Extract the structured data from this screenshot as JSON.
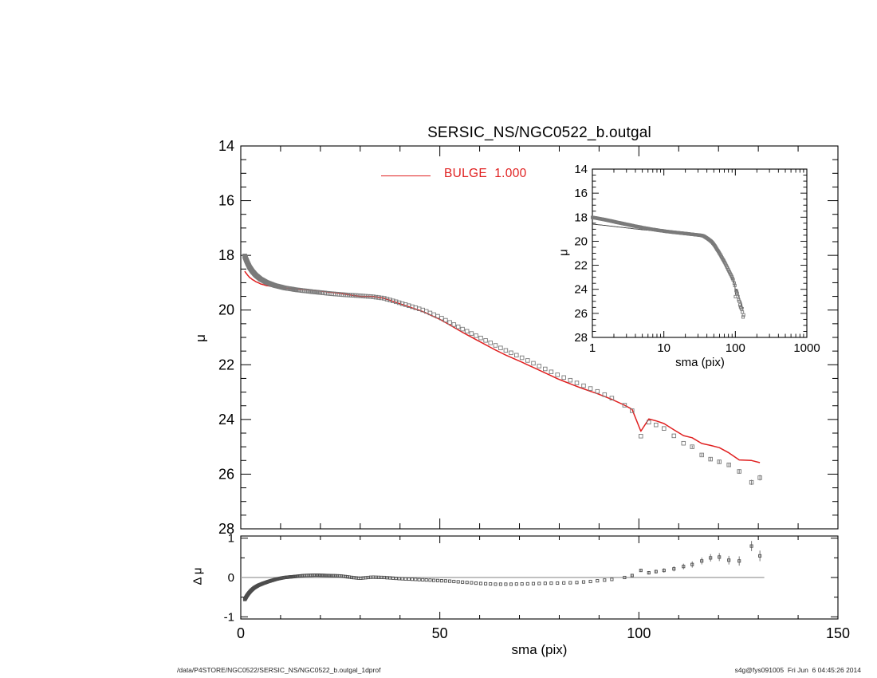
{
  "title": "SERSIC_NS/NGC0522_b.outgal",
  "legend": {
    "label": "BULGE  1.000",
    "color": "#e01f1f",
    "sample": "red-line"
  },
  "axis_labels": {
    "main_y": "μ",
    "residual_y": "Δ μ",
    "x": "sma (pix)",
    "inset_x": "sma (pix)",
    "inset_y": "μ"
  },
  "footer": {
    "left": "/data/P4STORE/NGC0522/SERSIC_NS/NGC0522_b.outgal_1dprof",
    "right": "s4g@fys091005  Fri Jun  6 04:45:26 2014"
  },
  "colors": {
    "model_line": "#e01f1f",
    "inset_model_line": "#3a3a3a",
    "marker": "#7a7a7a",
    "residual_marker": "#4d4d4d",
    "error_bar": "#666666",
    "zero_line": "#9a9a9a",
    "axis": "#000000",
    "background": "#ffffff"
  },
  "chart_data": {
    "type": "scatter",
    "panels": {
      "main": {
        "ylabel": "μ",
        "xlim": [
          0,
          150
        ],
        "ylim_top_to_bottom": [
          14,
          28
        ],
        "ytick_labels": [
          "14",
          "16",
          "18",
          "20",
          "22",
          "24",
          "26",
          "28"
        ],
        "yticks": [
          14,
          16,
          18,
          20,
          22,
          24,
          26,
          28
        ],
        "y_minor_step": 0.5,
        "xticks": [
          0,
          50,
          100,
          150
        ],
        "x_minor_step": 10,
        "x_tick_labels_shown": false
      },
      "inset": {
        "xlabel": "sma (pix)",
        "ylabel": "μ",
        "xscale": "log",
        "xlim": [
          1,
          1000
        ],
        "ylim_top_to_bottom": [
          14,
          28
        ],
        "xtick_labels": [
          "1",
          "10",
          "100",
          "1000"
        ],
        "xticks": [
          1,
          10,
          100,
          1000
        ],
        "ytick_labels": [
          "14",
          "16",
          "18",
          "20",
          "22",
          "24",
          "26",
          "28"
        ],
        "yticks": [
          14,
          16,
          18,
          20,
          22,
          24,
          26,
          28
        ],
        "y_minor_step": 0.5
      },
      "residual": {
        "xlabel": "sma (pix)",
        "ylabel": "Δ μ",
        "xlim": [
          0,
          150
        ],
        "ylim": [
          -1.05,
          1.05
        ],
        "ytick_labels": [
          "-1",
          "0",
          "1"
        ],
        "yticks": [
          -1,
          0,
          1
        ],
        "y_minor_step": 0.5,
        "xtick_labels": [
          "0",
          "50",
          "100",
          "150"
        ],
        "xticks": [
          0,
          50,
          100,
          150
        ],
        "x_minor_step": 10,
        "zero_line_extent": [
          0,
          131.5
        ]
      }
    },
    "series": {
      "observed": {
        "name": "observed surface-brightness profile",
        "marker": "open-square",
        "anchors": [
          [
            1,
            18.02
          ],
          [
            1.3,
            18.14
          ],
          [
            1.7,
            18.28
          ],
          [
            2.2,
            18.43
          ],
          [
            2.9,
            18.58
          ],
          [
            3.8,
            18.73
          ],
          [
            5,
            18.87
          ],
          [
            6.5,
            18.99
          ],
          [
            8.5,
            19.1
          ],
          [
            11,
            19.19
          ],
          [
            14,
            19.26
          ],
          [
            18,
            19.33
          ],
          [
            22,
            19.39
          ],
          [
            26,
            19.44
          ],
          [
            30,
            19.48
          ],
          [
            33,
            19.51
          ],
          [
            36,
            19.57
          ],
          [
            40,
            19.74
          ],
          [
            46,
            20.01
          ],
          [
            50,
            20.26
          ],
          [
            56,
            20.72
          ],
          [
            60,
            21.0
          ],
          [
            66,
            21.44
          ],
          [
            70,
            21.7
          ],
          [
            76,
            22.12
          ],
          [
            80,
            22.4
          ],
          [
            86,
            22.76
          ],
          [
            90,
            23.0
          ],
          [
            94.4,
            23.3
          ],
          [
            96.4,
            23.48
          ],
          [
            98.3,
            23.68
          ],
          [
            100.5,
            24.61
          ],
          [
            102.5,
            24.1
          ],
          [
            104.3,
            24.2
          ],
          [
            106.3,
            24.33
          ],
          [
            108.8,
            24.6
          ],
          [
            111.2,
            24.87
          ],
          [
            113.4,
            25.0
          ],
          [
            115.8,
            25.3
          ],
          [
            118,
            25.45
          ],
          [
            120.2,
            25.55
          ],
          [
            122.6,
            25.66
          ],
          [
            125.2,
            25.9
          ],
          [
            128.3,
            26.3
          ],
          [
            130.4,
            26.13
          ]
        ]
      },
      "residual": {
        "name": "observed minus model (Δ μ)",
        "marker": "open-square",
        "anchors": [
          [
            1,
            -0.56
          ],
          [
            1.5,
            -0.47
          ],
          [
            2,
            -0.4
          ],
          [
            2.6,
            -0.33
          ],
          [
            3.4,
            -0.26
          ],
          [
            4.4,
            -0.2
          ],
          [
            5.6,
            -0.15
          ],
          [
            7,
            -0.1
          ],
          [
            9,
            -0.04
          ],
          [
            11,
            0.0
          ],
          [
            13,
            0.02
          ],
          [
            16,
            0.05
          ],
          [
            19,
            0.06
          ],
          [
            22,
            0.05
          ],
          [
            25,
            0.04
          ],
          [
            28,
            0.0
          ],
          [
            30,
            -0.02
          ],
          [
            33,
            0.01
          ],
          [
            36,
            0.0
          ],
          [
            40,
            -0.03
          ],
          [
            44,
            -0.05
          ],
          [
            48,
            -0.07
          ],
          [
            52,
            -0.09
          ],
          [
            56,
            -0.12
          ],
          [
            60,
            -0.15
          ],
          [
            64,
            -0.17
          ],
          [
            68,
            -0.17
          ],
          [
            72,
            -0.16
          ],
          [
            76,
            -0.15
          ],
          [
            80,
            -0.14
          ],
          [
            84,
            -0.13
          ],
          [
            88,
            -0.1
          ],
          [
            91,
            -0.07
          ],
          [
            94,
            -0.04
          ],
          [
            96.4,
            0.0
          ],
          [
            98.3,
            0.05
          ],
          [
            100.5,
            0.18
          ],
          [
            102.5,
            0.12
          ],
          [
            104.3,
            0.15
          ],
          [
            106.3,
            0.18
          ],
          [
            108.8,
            0.22
          ],
          [
            111.2,
            0.28
          ],
          [
            113.4,
            0.33
          ],
          [
            115.8,
            0.42
          ],
          [
            118,
            0.5
          ],
          [
            120.2,
            0.52
          ],
          [
            122.6,
            0.44
          ],
          [
            125.2,
            0.42
          ],
          [
            128.3,
            0.8
          ],
          [
            130.4,
            0.55
          ]
        ]
      },
      "model": {
        "name": "BULGE model (red line)",
        "derived": "observed minus residual",
        "sersic_index_label": "1.000"
      }
    },
    "sampling": {
      "start": 1,
      "ratio": 1.02,
      "geo_until": 95,
      "tail": "anchor radii"
    },
    "error_bars": {
      "residual": {
        "from_sma": 97,
        "base": 0.025,
        "slope": 0.0033
      },
      "main": {
        "from_sma": 113,
        "base": 0.04,
        "slope": 0.0035
      }
    }
  }
}
